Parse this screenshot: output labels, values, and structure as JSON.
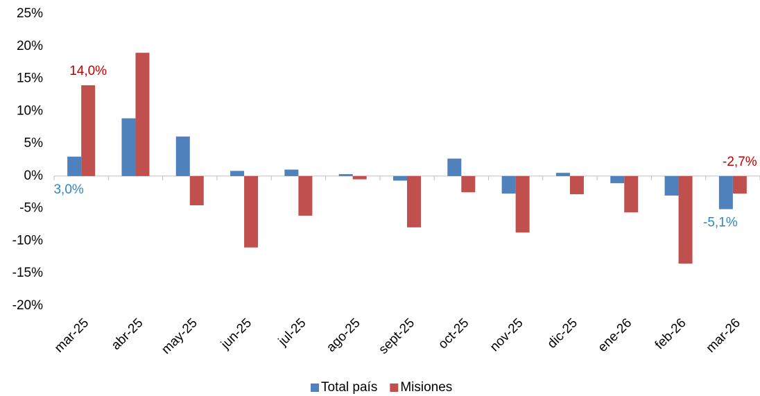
{
  "chart_data": {
    "type": "bar",
    "categories": [
      "mar-25",
      "abr-25",
      "may-25",
      "jun-25",
      "jul-25",
      "ago-25",
      "sept-25",
      "oct-25",
      "nov-25",
      "dic-25",
      "ene-26",
      "feb-26",
      "mar-26"
    ],
    "series": [
      {
        "name": "Total país",
        "color": "#4f81bd",
        "label_color": "#2e86c1",
        "values": [
          3.0,
          8.9,
          6.1,
          0.8,
          1.0,
          0.3,
          -0.7,
          2.7,
          -2.7,
          0.5,
          -1.1,
          -3.0,
          -5.1
        ],
        "value_labels": [
          "3,0%",
          null,
          null,
          null,
          null,
          null,
          null,
          null,
          null,
          null,
          null,
          null,
          "-5,1%"
        ]
      },
      {
        "name": "Misiones",
        "color": "#c0504d",
        "label_color": "#c00000",
        "values": [
          14.0,
          19.0,
          -4.5,
          -11.0,
          -6.1,
          -0.5,
          -7.9,
          -2.5,
          -8.7,
          -2.8,
          -5.6,
          -13.5,
          -2.7
        ],
        "value_labels": [
          "14,0%",
          null,
          null,
          null,
          null,
          null,
          null,
          null,
          null,
          null,
          null,
          null,
          "-2,7%"
        ]
      }
    ],
    "ylim": [
      -20,
      25
    ],
    "yticks": [
      {
        "value": -20,
        "label": "-20%"
      },
      {
        "value": -15,
        "label": "-15%"
      },
      {
        "value": -10,
        "label": "-10%"
      },
      {
        "value": -5,
        "label": "-5%"
      },
      {
        "value": 0,
        "label": "0%"
      },
      {
        "value": 5,
        "label": "5%"
      },
      {
        "value": 10,
        "label": "10%"
      },
      {
        "value": 15,
        "label": "15%"
      },
      {
        "value": 20,
        "label": "20%"
      },
      {
        "value": 25,
        "label": "25%"
      }
    ],
    "grid": false,
    "legend": "bottom"
  }
}
